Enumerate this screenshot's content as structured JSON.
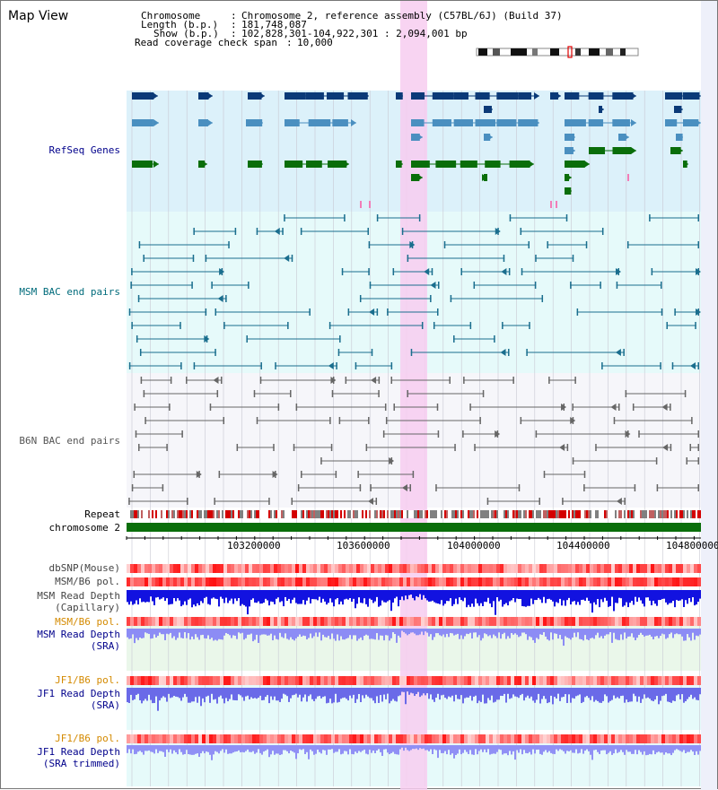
{
  "window": {
    "title": "Map View"
  },
  "info": {
    "rows": [
      {
        "key": "Chromosome",
        "value": "Chromosome 2, reference assembly (C57BL/6J) (Build 37)"
      },
      {
        "key": "Length (b.p.)",
        "value": "181,748,087"
      },
      {
        "key": "Show (b.p.)",
        "value": "102,828,301-104,922,301 : 2,094,001 bp"
      },
      {
        "key": "Read coverage check span",
        "value": "10,000"
      }
    ]
  },
  "tracks": {
    "refseq": "RefSeq Genes",
    "msm_bac": "MSM BAC end pairs",
    "b6n_bac": "B6N BAC end pairs",
    "repeat": "Repeat",
    "chromosome": "chromosome 2",
    "dbsnp": "dbSNP(Mouse)",
    "msm_b6_pol": "MSM/B6 pol.",
    "msm_cap_depth_1": "MSM Read Depth",
    "msm_cap_depth_2": "(Capillary)",
    "msm_b6_pol_2": "MSM/B6 pol.",
    "msm_sra_depth_1": "MSM Read Depth",
    "msm_sra_depth_2": "(SRA)",
    "jf1_b6_pol": "JF1/B6 pol.",
    "jf1_sra_depth_1": "JF1 Read Depth",
    "jf1_sra_depth_2": "(SRA)",
    "jf1_b6_pol_2": "JF1/B6 pol.",
    "jf1_trim_depth_1": "JF1 Read Depth",
    "jf1_trim_depth_2": "(SRA trimmed)"
  },
  "ruler": {
    "ticks": [
      "103200000",
      "103600000",
      "104000000",
      "104400000",
      "104800000"
    ]
  },
  "colors": {
    "refseq_dark": "#0b3a78",
    "refseq_mid": "#4a8fc0",
    "refseq_green": "#0a6e0a",
    "msm_bac": "#1a6e8e",
    "b6n_bac": "#666666",
    "highlight": "#f7cdf0",
    "label_navy": "#00008b",
    "label_teal": "#006b7b",
    "label_orange": "#d48a00"
  }
}
